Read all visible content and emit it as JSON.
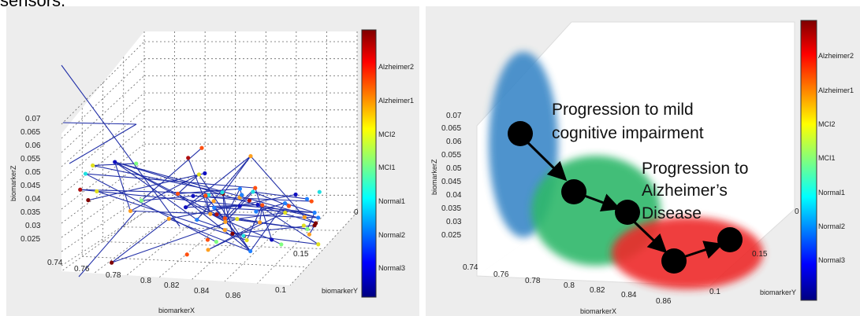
{
  "header": {
    "caption": "sensors."
  },
  "chart_data": [
    {
      "type": "scatter",
      "title": "",
      "xlabel": "biomarkerX",
      "ylabel": "biomarkerY",
      "zlabel": "biomarkerZ",
      "x_ticks": [
        "0.74",
        "0.76",
        "0.78",
        "0.8",
        "0.82",
        "0.84",
        "0.86"
      ],
      "y_ticks": [
        "0.1",
        "0.15",
        "0"
      ],
      "z_ticks": [
        "0.07",
        "0.065",
        "0.06",
        "0.055",
        "0.05",
        "0.045",
        "0.04",
        "0.035",
        "0.03",
        "0.025"
      ],
      "xlim": [
        0.74,
        0.87
      ],
      "ylim": [
        0,
        0.17
      ],
      "zlim": [
        0.02,
        0.075
      ],
      "grid": true,
      "colorbar": {
        "labels": [
          "Alzheimer2",
          "Alzheimer1",
          "MCI2",
          "MCI1",
          "Normal1",
          "Normal2",
          "Normal3"
        ],
        "colors_top_to_bottom": [
          "#7f0000",
          "#ff0000",
          "#ff8c00",
          "#ffff00",
          "#7fff7f",
          "#00ffff",
          "#007fff",
          "#0000ff",
          "#00007f"
        ]
      },
      "line_color": "#2230a8",
      "point_colors": [
        "#800000",
        "#b01010",
        "#ff5010",
        "#ffa020",
        "#e0e020",
        "#80ff80",
        "#20e0e0",
        "#2080ff",
        "#1010c0"
      ]
    },
    {
      "type": "scatter",
      "title": "",
      "xlabel": "biomarkerX",
      "ylabel": "biomarkerY",
      "zlabel": "biomarkerZ",
      "x_ticks": [
        "0.74",
        "0.76",
        "0.78",
        "0.8",
        "0.82",
        "0.84",
        "0.86"
      ],
      "y_ticks": [
        "0.1",
        "0.15",
        "0"
      ],
      "z_ticks": [
        "0.07",
        "0.065",
        "0.06",
        "0.055",
        "0.05",
        "0.045",
        "0.04",
        "0.035",
        "0.03",
        "0.025"
      ],
      "xlim": [
        0.74,
        0.87
      ],
      "ylim": [
        0,
        0.17
      ],
      "zlim": [
        0.02,
        0.075
      ],
      "grid": false,
      "colorbar": {
        "labels": [
          "Alzheimer2",
          "Alzheimer1",
          "MCI2",
          "MCI1",
          "Normal1",
          "Normal2",
          "Normal3"
        ],
        "colors_top_to_bottom": [
          "#7f0000",
          "#ff0000",
          "#ff8c00",
          "#ffff00",
          "#7fff7f",
          "#00ffff",
          "#007fff",
          "#0000ff",
          "#00007f"
        ]
      },
      "annotations": [
        "Progression to mild cognitive impairment",
        "Progression to Alzheimer’s Disease"
      ],
      "regions": [
        {
          "color": "#3a88c8"
        },
        {
          "color": "#2fb86a"
        },
        {
          "color": "#ee2a2a"
        }
      ]
    }
  ]
}
